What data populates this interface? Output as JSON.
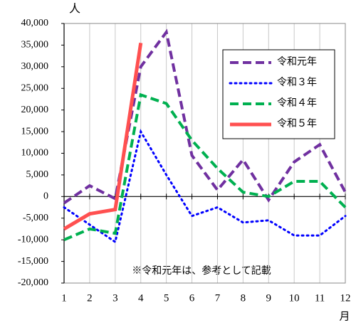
{
  "chart_data": {
    "type": "line",
    "y_axis_label": "人",
    "x_axis_label": "月",
    "annotation": "※令和元年は、参考として記載",
    "categories": [
      "1",
      "2",
      "3",
      "4",
      "5",
      "6",
      "7",
      "8",
      "9",
      "10",
      "11",
      "12"
    ],
    "ylim": [
      -20000,
      40000
    ],
    "yticks": [
      {
        "value": 40000,
        "label": "40,000"
      },
      {
        "value": 35000,
        "label": "35,000"
      },
      {
        "value": 30000,
        "label": "30,000"
      },
      {
        "value": 25000,
        "label": "25,000"
      },
      {
        "value": 20000,
        "label": "20,000"
      },
      {
        "value": 15000,
        "label": "15,000"
      },
      {
        "value": 10000,
        "label": "10,000"
      },
      {
        "value": 5000,
        "label": "5,000"
      },
      0,
      {
        "value": -5000,
        "label": "-5,000"
      },
      {
        "value": -10000,
        "label": "-10,000"
      },
      {
        "value": -15000,
        "label": "-15,000"
      },
      {
        "value": -20000,
        "label": "-20,000"
      }
    ],
    "negative_tick_color": "#ff0000",
    "grid": true,
    "legend": "upper right",
    "series": [
      {
        "name": "令和元年",
        "color": "#7030a0",
        "style": "dashed",
        "values": [
          -1500,
          2500,
          -500,
          30000,
          38000,
          9500,
          1500,
          8500,
          -800,
          8000,
          12000,
          1000
        ]
      },
      {
        "name": "令和３年",
        "color": "#0000ff",
        "style": "dotted",
        "values": [
          -2500,
          -6500,
          -10500,
          15000,
          5000,
          -4500,
          -2500,
          -6000,
          -5500,
          -9000,
          -9000,
          -4500
        ]
      },
      {
        "name": "令和４年",
        "color": "#00b050",
        "style": "dashed",
        "values": [
          -10000,
          -7500,
          -8500,
          23500,
          21500,
          13000,
          6500,
          1000,
          0,
          3500,
          3500,
          -2500
        ]
      },
      {
        "name": "令和５年",
        "color": "#ff5050",
        "style": "solid",
        "values": [
          -7500,
          -4000,
          -3000,
          35500,
          null,
          null,
          null,
          null,
          null,
          null,
          null,
          null
        ]
      }
    ]
  }
}
